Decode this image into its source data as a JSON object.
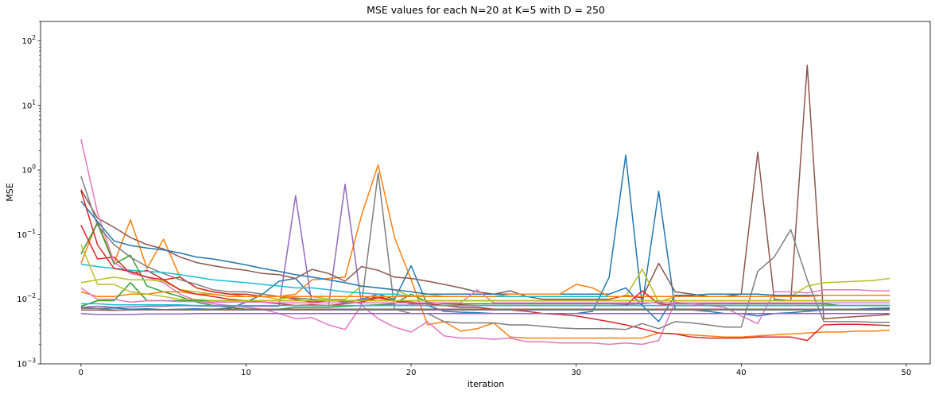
{
  "chart_data": {
    "type": "line",
    "title": "MSE values for each N=20 at K=5 with D = 250",
    "xlabel": "iteration",
    "ylabel": "MSE",
    "y_scale": "log",
    "xlim": [
      -2.45,
      51.45
    ],
    "ylim": [
      0.001,
      200
    ],
    "grid": false,
    "legend": "none",
    "x_ticks": [
      0,
      10,
      20,
      30,
      40,
      50
    ],
    "x_tick_labels": [
      "0",
      "10",
      "20",
      "30",
      "40",
      "50"
    ],
    "y_ticks": [
      0.001,
      0.01,
      0.1,
      1,
      10,
      100
    ],
    "x": [
      0,
      1,
      2,
      3,
      4,
      5,
      6,
      7,
      8,
      9,
      10,
      11,
      12,
      13,
      14,
      15,
      16,
      17,
      18,
      19,
      20,
      21,
      22,
      23,
      24,
      25,
      26,
      27,
      28,
      29,
      30,
      31,
      32,
      33,
      34,
      35,
      36,
      37,
      38,
      39,
      40,
      41,
      42,
      43,
      44,
      45,
      46,
      47,
      48,
      49
    ],
    "series": [
      {
        "color": "#1f77b4",
        "values": [
          0.0075,
          0.0072,
          0.0073,
          0.007,
          0.0071,
          0.0069,
          0.007,
          0.0071,
          0.007,
          0.0072,
          0.009,
          0.012,
          0.019,
          0.021,
          0.011,
          0.01,
          0.009,
          0.01,
          0.012,
          0.01,
          0.033,
          0.008,
          0.0065,
          0.0063,
          0.0062,
          0.006,
          0.006,
          0.006,
          0.006,
          0.006,
          0.006,
          0.0065,
          0.022,
          1.7,
          0.008,
          0.47,
          0.007,
          0.0068,
          0.0065,
          0.006,
          0.006,
          0.0055,
          0.006,
          0.0062,
          0.0065,
          0.0068,
          0.0069,
          0.007,
          0.0072,
          0.0073
        ]
      },
      {
        "color": "#ff7f0e",
        "values": [
          0.036,
          0.16,
          0.036,
          0.17,
          0.03,
          0.085,
          0.022,
          0.015,
          0.013,
          0.012,
          0.011,
          0.011,
          0.011,
          0.012,
          0.02,
          0.021,
          0.022,
          0.2,
          1.2,
          0.09,
          0.02,
          0.004,
          0.0045,
          0.0032,
          0.0035,
          0.0043,
          0.0026,
          0.0025,
          0.0025,
          0.0025,
          0.0025,
          0.0025,
          0.0025,
          0.0025,
          0.0025,
          0.003,
          0.0029,
          0.0028,
          0.0027,
          0.0026,
          0.0026,
          0.0027,
          0.0028,
          0.0029,
          0.003,
          0.0031,
          0.0031,
          0.0032,
          0.0032,
          0.0033
        ]
      },
      {
        "color": "#2ca02c",
        "values": [
          0.05,
          0.15,
          0.035,
          0.048,
          0.016,
          0.013,
          0.011,
          0.009,
          0.008,
          0.0075,
          0.007,
          0.007,
          0.007,
          0.0075,
          0.0075,
          0.0075,
          0.0078,
          0.008,
          0.0082,
          0.0085,
          0.012,
          0.009,
          0.0085,
          0.0085,
          0.0085,
          0.0085,
          0.0085,
          0.0085,
          0.0085,
          0.0085,
          0.0085,
          0.0085,
          0.0085,
          0.0085,
          0.0085,
          0.009,
          0.0085,
          0.0085,
          0.0085,
          0.0085,
          0.0085,
          0.0085,
          0.0085,
          0.0085,
          0.0085,
          0.0085,
          0.008,
          0.008,
          0.008,
          0.008
        ]
      },
      {
        "color": "#d62728",
        "values": [
          0.14,
          0.042,
          0.045,
          0.025,
          0.028,
          0.02,
          0.022,
          0.015,
          0.013,
          0.012,
          0.012,
          0.011,
          0.011,
          0.01,
          0.009,
          0.0095,
          0.0095,
          0.0095,
          0.011,
          0.0095,
          0.0085,
          0.0085,
          0.008,
          0.0075,
          0.0075,
          0.007,
          0.0068,
          0.0065,
          0.006,
          0.0058,
          0.0055,
          0.005,
          0.0045,
          0.004,
          0.0035,
          0.003,
          0.0029,
          0.0026,
          0.0025,
          0.0025,
          0.0025,
          0.0026,
          0.0026,
          0.0026,
          0.0023,
          0.004,
          0.0041,
          0.0041,
          0.004,
          0.0039
        ]
      },
      {
        "color": "#9467bd",
        "values": [
          0.0075,
          0.0078,
          0.0075,
          0.0076,
          0.0078,
          0.0078,
          0.008,
          0.0079,
          0.0078,
          0.0078,
          0.0078,
          0.0078,
          0.0078,
          0.4,
          0.008,
          0.008,
          0.6,
          0.008,
          0.008,
          0.0081,
          0.0081,
          0.008,
          0.008,
          0.008,
          0.008,
          0.008,
          0.008,
          0.008,
          0.008,
          0.008,
          0.008,
          0.008,
          0.008,
          0.0082,
          0.008,
          0.008,
          0.008,
          0.008,
          0.008,
          0.008,
          0.008,
          0.008,
          0.008,
          0.008,
          0.008,
          0.008,
          0.008,
          0.008,
          0.008,
          0.008
        ]
      },
      {
        "color": "#8c564b",
        "values": [
          0.5,
          0.18,
          0.13,
          0.09,
          0.07,
          0.06,
          0.045,
          0.037,
          0.033,
          0.03,
          0.028,
          0.025,
          0.024,
          0.021,
          0.029,
          0.025,
          0.019,
          0.032,
          0.028,
          0.022,
          0.021,
          0.019,
          0.017,
          0.015,
          0.013,
          0.012,
          0.0135,
          0.011,
          0.01,
          0.01,
          0.01,
          0.01,
          0.01,
          0.0115,
          0.0105,
          0.036,
          0.013,
          0.012,
          0.011,
          0.011,
          0.012,
          1.9,
          0.01,
          0.0095,
          42,
          0.005,
          0.0052,
          0.0054,
          0.0056,
          0.0058
        ]
      },
      {
        "color": "#e377c2",
        "values": [
          3.0,
          0.22,
          0.037,
          0.025,
          0.022,
          0.018,
          0.012,
          0.0095,
          0.0085,
          0.008,
          0.0075,
          0.007,
          0.006,
          0.005,
          0.0052,
          0.004,
          0.0034,
          0.008,
          0.005,
          0.0037,
          0.0031,
          0.0045,
          0.0027,
          0.0025,
          0.0025,
          0.0024,
          0.0025,
          0.0022,
          0.0022,
          0.0021,
          0.0021,
          0.0021,
          0.002,
          0.0021,
          0.002,
          0.0023,
          0.009,
          0.0085,
          0.008,
          0.0075,
          0.0055,
          0.0042,
          0.013,
          0.013,
          0.0125,
          0.014,
          0.014,
          0.014,
          0.0135,
          0.0135
        ]
      },
      {
        "color": "#7f7f7f",
        "values": [
          0.8,
          0.14,
          0.07,
          0.045,
          0.032,
          0.025,
          0.02,
          0.017,
          0.014,
          0.013,
          0.013,
          0.012,
          0.011,
          0.0105,
          0.01,
          0.0095,
          0.0095,
          0.0085,
          0.9,
          0.007,
          0.006,
          0.006,
          0.0045,
          0.0043,
          0.0043,
          0.0043,
          0.004,
          0.004,
          0.0038,
          0.0036,
          0.0035,
          0.0035,
          0.0035,
          0.0034,
          0.0042,
          0.0035,
          0.0045,
          0.0043,
          0.004,
          0.0037,
          0.0037,
          0.027,
          0.045,
          0.12,
          0.02,
          0.0045,
          0.0045,
          0.0045,
          0.0044,
          0.0044
        ]
      },
      {
        "color": "#bcbd22",
        "values": [
          0.018,
          0.02,
          0.022,
          0.02,
          0.02,
          0.019,
          0.014,
          0.013,
          0.012,
          0.011,
          0.011,
          0.011,
          0.01,
          0.011,
          0.011,
          0.01,
          0.01,
          0.016,
          0.015,
          0.014,
          0.011,
          0.012,
          0.011,
          0.011,
          0.011,
          0.011,
          0.011,
          0.011,
          0.011,
          0.011,
          0.011,
          0.011,
          0.011,
          0.011,
          0.029,
          0.009,
          0.011,
          0.011,
          0.011,
          0.011,
          0.011,
          0.011,
          0.011,
          0.011,
          0.016,
          0.018,
          0.0185,
          0.019,
          0.0195,
          0.021
        ]
      },
      {
        "color": "#17becf",
        "values": [
          0.035,
          0.032,
          0.03,
          0.028,
          0.027,
          0.026,
          0.024,
          0.022,
          0.02,
          0.019,
          0.018,
          0.017,
          0.016,
          0.015,
          0.015,
          0.014,
          0.013,
          0.0125,
          0.012,
          0.012,
          0.011,
          0.011,
          0.011,
          0.011,
          0.011,
          0.011,
          0.011,
          0.011,
          0.011,
          0.011,
          0.011,
          0.011,
          0.011,
          0.011,
          0.011,
          0.011,
          0.011,
          0.011,
          0.011,
          0.011,
          0.011,
          0.011,
          0.011,
          0.011,
          0.011,
          0.0115,
          0.0115,
          0.0115,
          0.0115,
          0.0115
        ]
      },
      {
        "color": "#1f77b4",
        "values": [
          0.33,
          0.16,
          0.08,
          0.068,
          0.062,
          0.058,
          0.052,
          0.045,
          0.042,
          0.038,
          0.034,
          0.03,
          0.027,
          0.024,
          0.022,
          0.02,
          0.018,
          0.016,
          0.015,
          0.014,
          0.013,
          0.012,
          0.012,
          0.012,
          0.012,
          0.012,
          0.012,
          0.012,
          0.012,
          0.012,
          0.012,
          0.012,
          0.012,
          0.015,
          0.008,
          0.0045,
          0.0115,
          0.0115,
          0.012,
          0.012,
          0.012,
          0.012,
          0.0115,
          0.0115,
          0.0115,
          0.0115,
          0.0115,
          0.0115,
          0.0115,
          0.0115
        ]
      },
      {
        "color": "#ff7f0e",
        "values": [
          0.013,
          0.011,
          0.011,
          0.012,
          0.012,
          0.013,
          0.013,
          0.012,
          0.012,
          0.011,
          0.011,
          0.011,
          0.011,
          0.011,
          0.011,
          0.011,
          0.011,
          0.011,
          0.011,
          0.011,
          0.011,
          0.011,
          0.011,
          0.011,
          0.011,
          0.011,
          0.012,
          0.012,
          0.012,
          0.012,
          0.017,
          0.015,
          0.011,
          0.011,
          0.011,
          0.011,
          0.011,
          0.011,
          0.011,
          0.011,
          0.011,
          0.011,
          0.011,
          0.011,
          0.011,
          0.0115,
          0.0115,
          0.0115,
          0.0115,
          0.0115
        ]
      },
      {
        "color": "#2ca02c",
        "values": [
          0.0078,
          0.0095,
          0.0095,
          0.018,
          0.0095,
          0.0095,
          0.0095,
          0.0095,
          0.0095,
          0.0095,
          0.0095,
          0.0095,
          0.0095,
          0.0095,
          0.0095,
          0.0095,
          0.0095,
          0.0095,
          0.0095,
          0.0095,
          0.0095,
          0.0095,
          0.0095,
          0.0095,
          0.0095,
          0.0095,
          0.0095,
          0.0095,
          0.0095,
          0.0095,
          0.0095,
          0.0095,
          0.0095,
          0.0095,
          0.0095,
          0.0095,
          0.0095,
          0.0095,
          0.0095,
          0.0095,
          0.0095,
          0.0095,
          0.0095,
          0.0095,
          0.0095,
          0.0095,
          0.0095,
          0.0095,
          0.0095,
          0.0095
        ]
      },
      {
        "color": "#d62728",
        "values": [
          0.48,
          0.07,
          0.03,
          0.027,
          0.022,
          0.02,
          0.014,
          0.012,
          0.011,
          0.01,
          0.0095,
          0.009,
          0.0085,
          0.008,
          0.0082,
          0.008,
          0.0085,
          0.009,
          0.0105,
          0.0095,
          0.009,
          0.0085,
          0.008,
          0.0082,
          0.008,
          0.008,
          0.008,
          0.008,
          0.008,
          0.008,
          0.008,
          0.008,
          0.008,
          0.008,
          0.0135,
          0.0085,
          0.008,
          0.008,
          0.008,
          0.008,
          0.008,
          0.008,
          0.008,
          0.008,
          0.008,
          0.008,
          0.008,
          0.008,
          0.008,
          0.008
        ]
      },
      {
        "color": "#9467bd",
        "values": [
          0.006,
          0.0058,
          0.0058,
          0.0058,
          0.0059,
          0.0059,
          0.0059,
          0.006,
          0.006,
          0.006,
          0.006,
          0.006,
          0.006,
          0.006,
          0.006,
          0.006,
          0.006,
          0.006,
          0.006,
          0.006,
          0.006,
          0.006,
          0.006,
          0.006,
          0.006,
          0.006,
          0.006,
          0.006,
          0.006,
          0.006,
          0.006,
          0.006,
          0.006,
          0.006,
          0.006,
          0.006,
          0.006,
          0.006,
          0.006,
          0.006,
          0.006,
          0.006,
          0.006,
          0.006,
          0.006,
          0.006,
          0.006,
          0.006,
          0.006,
          0.006
        ]
      },
      {
        "color": "#8c564b",
        "values": [
          0.0068,
          0.0068,
          0.0067,
          0.0068,
          0.0068,
          0.0069,
          0.0069,
          0.0069,
          0.007,
          0.007,
          0.007,
          0.007,
          0.007,
          0.007,
          0.007,
          0.007,
          0.007,
          0.007,
          0.007,
          0.007,
          0.007,
          0.007,
          0.007,
          0.007,
          0.007,
          0.007,
          0.007,
          0.007,
          0.007,
          0.007,
          0.007,
          0.007,
          0.007,
          0.007,
          0.007,
          0.007,
          0.007,
          0.007,
          0.007,
          0.007,
          0.007,
          0.007,
          0.007,
          0.007,
          0.007,
          0.007,
          0.007,
          0.007,
          0.007,
          0.007
        ]
      },
      {
        "color": "#e377c2",
        "values": [
          0.015,
          0.01,
          0.01,
          0.009,
          0.0095,
          0.0095,
          0.0092,
          0.0092,
          0.009,
          0.009,
          0.009,
          0.009,
          0.0088,
          0.0088,
          0.0088,
          0.0088,
          0.0088,
          0.0088,
          0.0088,
          0.0088,
          0.0088,
          0.0088,
          0.0088,
          0.0088,
          0.014,
          0.0088,
          0.0088,
          0.0088,
          0.0088,
          0.0088,
          0.0088,
          0.0088,
          0.0088,
          0.0088,
          0.0088,
          0.0088,
          0.0088,
          0.0088,
          0.0088,
          0.0088,
          0.0088,
          0.0088,
          0.0088,
          0.0088,
          0.0088,
          0.0088,
          0.0088,
          0.0088,
          0.0088,
          0.0088
        ]
      },
      {
        "color": "#7f7f7f",
        "values": [
          0.0072,
          0.0072,
          0.0068,
          0.0068,
          0.0068,
          0.0068,
          0.0068,
          0.0068,
          0.0068,
          0.0068,
          0.0068,
          0.0068,
          0.0068,
          0.0068,
          0.0068,
          0.0068,
          0.0068,
          0.0068,
          0.0068,
          0.0068,
          0.0068,
          0.0068,
          0.0068,
          0.0068,
          0.0068,
          0.0068,
          0.0068,
          0.0068,
          0.0068,
          0.0068,
          0.0068,
          0.0068,
          0.0068,
          0.0068,
          0.0068,
          0.0068,
          0.0068,
          0.0068,
          0.0068,
          0.0068,
          0.0068,
          0.0068,
          0.0068,
          0.0068,
          0.0068,
          0.0068,
          0.0068,
          0.0068,
          0.0068,
          0.0068
        ]
      },
      {
        "color": "#bcbd22",
        "values": [
          0.07,
          0.017,
          0.017,
          0.013,
          0.012,
          0.011,
          0.01,
          0.01,
          0.0095,
          0.0095,
          0.0095,
          0.0095,
          0.0095,
          0.0095,
          0.0095,
          0.0095,
          0.0095,
          0.0095,
          0.0095,
          0.0095,
          0.0095,
          0.0095,
          0.0095,
          0.0095,
          0.0095,
          0.0095,
          0.0095,
          0.0095,
          0.0095,
          0.0095,
          0.0095,
          0.0095,
          0.0095,
          0.0095,
          0.0095,
          0.0095,
          0.0095,
          0.0095,
          0.0095,
          0.0095,
          0.0095,
          0.0095,
          0.0095,
          0.0095,
          0.0095,
          0.0095,
          0.0095,
          0.0095,
          0.0095,
          0.0095
        ]
      },
      {
        "color": "#17becf",
        "values": [
          0.0085,
          0.0085,
          0.0082,
          0.0082,
          0.0082,
          0.0082,
          0.0082,
          0.008,
          0.008,
          0.008,
          0.008,
          0.008,
          0.008,
          0.008,
          0.008,
          0.008,
          0.008,
          0.008,
          0.008,
          0.008,
          0.008,
          0.008,
          0.008,
          0.008,
          0.008,
          0.008,
          0.008,
          0.008,
          0.008,
          0.008,
          0.008,
          0.008,
          0.008,
          0.008,
          0.008,
          0.008,
          0.008,
          0.008,
          0.008,
          0.008,
          0.008,
          0.008,
          0.008,
          0.008,
          0.008,
          0.008,
          0.008,
          0.008,
          0.008,
          0.008
        ]
      }
    ]
  }
}
